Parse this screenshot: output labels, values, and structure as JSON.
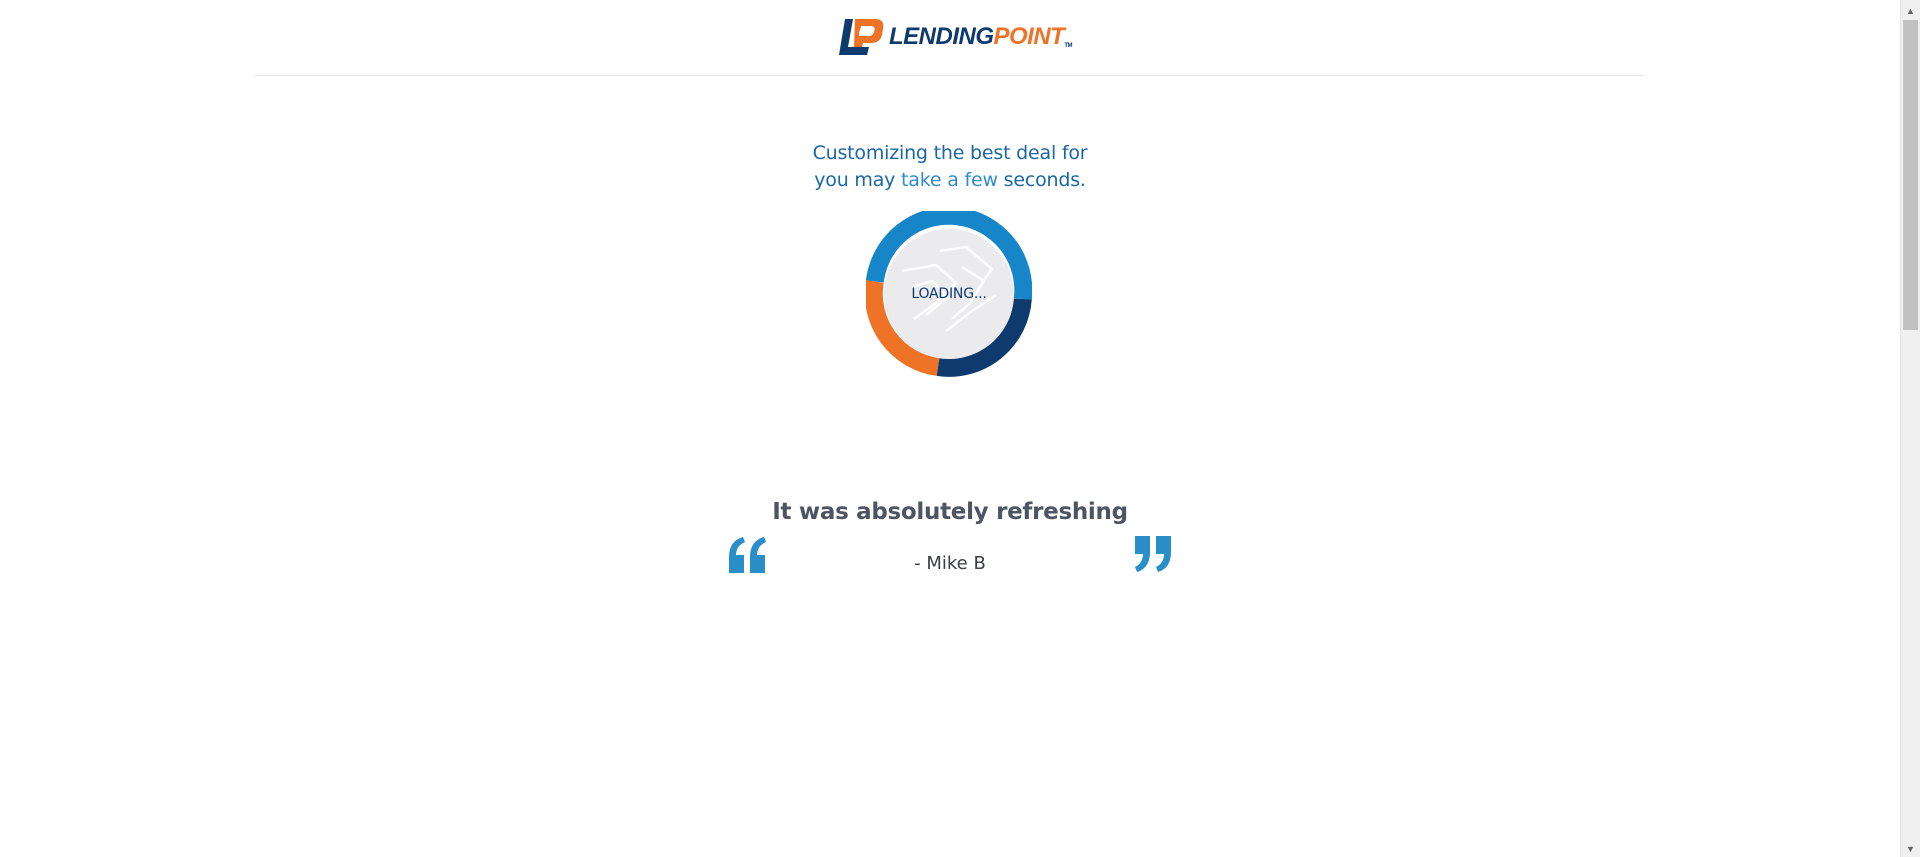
{
  "header": {
    "logo": {
      "word_first": "LENDING",
      "word_second": "POINT",
      "trademark": "TM",
      "brand_navy": "#0e3a6d",
      "brand_orange": "#ee7326",
      "icon": "lendingpoint-logo-icon"
    }
  },
  "loading": {
    "line1": "Customizing the best deal for",
    "line2_prefix": "you may ",
    "line2_highlight": "take a few",
    "line2_suffix": " seconds.",
    "label": "LOADING...",
    "ring_colors": [
      "#1786c9",
      "#0e3a6d",
      "#ee7326"
    ]
  },
  "testimonial": {
    "quote": "It was absolutely refreshing",
    "author": "- Mike B",
    "open_icon": "quote-open-icon",
    "close_icon": "quote-close-icon",
    "accent": "#2a8ec9"
  },
  "scrollbar": {
    "up_icon": "scroll-up-arrow-icon",
    "down_icon": "scroll-down-arrow-icon"
  }
}
